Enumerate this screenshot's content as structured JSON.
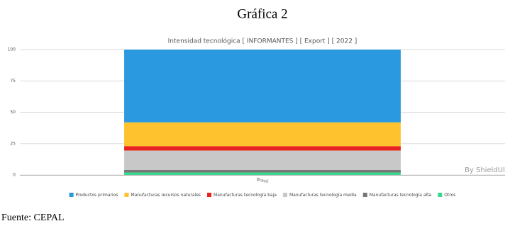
{
  "heading": "Gráfica 2",
  "footer": "Fuente: CEPAL",
  "chart_data": {
    "type": "stacked_bar",
    "title": "Intensidad tecnológica [ INFORMANTES ] [ Export ] [ 2022 ]",
    "watermark": "By ShieldUI",
    "categories": [
      "Brasil"
    ],
    "series": [
      {
        "name": "Productos primarios",
        "color": "#2b99e0",
        "values": [
          58
        ]
      },
      {
        "name": "Manufacturas recursos naturales",
        "color": "#fdc22e",
        "values": [
          19
        ]
      },
      {
        "name": "Manufacturas tecnología baja",
        "color": "#e8231f",
        "values": [
          3.5
        ]
      },
      {
        "name": "Manufacturas tecnología media",
        "color": "#c8c8c8",
        "values": [
          15.5
        ]
      },
      {
        "name": "Manufacturas tecnología alta",
        "color": "#777777",
        "values": [
          2
        ]
      },
      {
        "name": "Otros",
        "color": "#38d98e",
        "values": [
          2
        ]
      }
    ],
    "ylim": [
      0,
      100
    ],
    "yticks": [
      0,
      25,
      50,
      75,
      100
    ],
    "grid": true,
    "legend": "bottom"
  }
}
